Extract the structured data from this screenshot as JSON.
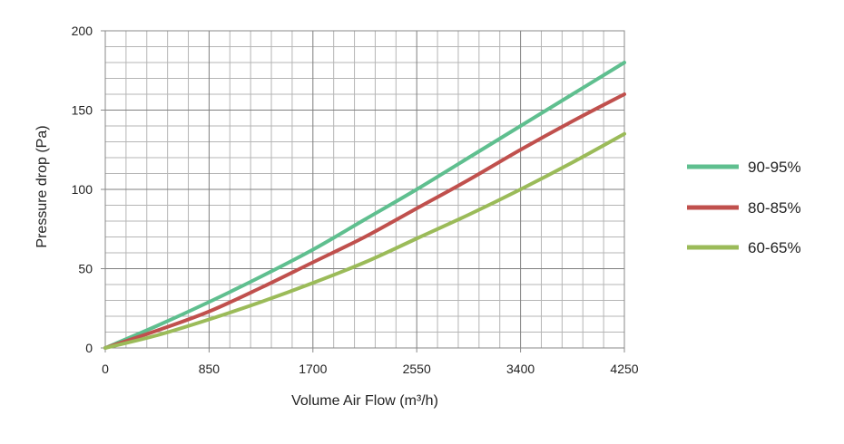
{
  "chart_data": {
    "type": "line",
    "title": "",
    "xlabel": "Volume Air Flow (m³/h)",
    "ylabel": "Pressure drop (Pa)",
    "xlim": [
      0,
      4250
    ],
    "ylim": [
      0,
      200
    ],
    "xticks": [
      "0",
      "850",
      "1700",
      "2550",
      "3400",
      "4250"
    ],
    "yticks": [
      "0",
      "50",
      "100",
      "150",
      "200"
    ],
    "grid": true,
    "legend_position": "right",
    "series": [
      {
        "name": "90-95%",
        "color": "#5fbf8f",
        "x": [
          0,
          425,
          850,
          1275,
          1700,
          2125,
          2550,
          2975,
          3400,
          3825,
          4250
        ],
        "y": [
          0,
          14,
          29,
          45,
          62,
          81,
          100,
          120,
          140,
          160,
          180
        ]
      },
      {
        "name": "80-85%",
        "color": "#c0504d",
        "x": [
          0,
          425,
          850,
          1275,
          1700,
          2125,
          2550,
          2975,
          3400,
          3825,
          4250
        ],
        "y": [
          0,
          11,
          23,
          38,
          54,
          70,
          88,
          106,
          125,
          143,
          160
        ]
      },
      {
        "name": "60-65%",
        "color": "#9bbb59",
        "x": [
          0,
          425,
          850,
          1275,
          1700,
          2125,
          2550,
          2975,
          3400,
          3825,
          4250
        ],
        "y": [
          0,
          8,
          18,
          29,
          41,
          54,
          69,
          84,
          100,
          117,
          135
        ]
      }
    ]
  }
}
